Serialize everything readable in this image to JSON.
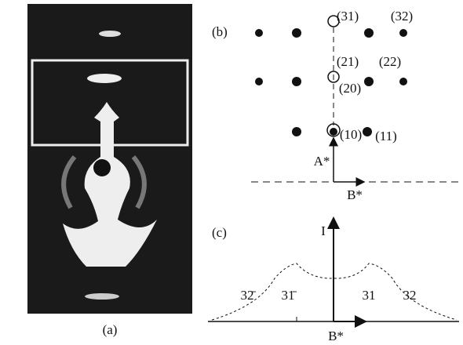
{
  "panels": {
    "a": {
      "label": "(a)"
    },
    "b": {
      "label": "(b)",
      "spots": [
        "(31)",
        "(32)",
        "(21)",
        "(22)",
        "(20)",
        "(10)",
        "(11)"
      ],
      "axis_a": "A*",
      "axis_b": "B*"
    },
    "c": {
      "label": "(c)",
      "axis_i": "I",
      "peaks": [
        "32̄",
        "31̄",
        "31",
        "32"
      ],
      "axis_b": "B*"
    }
  }
}
